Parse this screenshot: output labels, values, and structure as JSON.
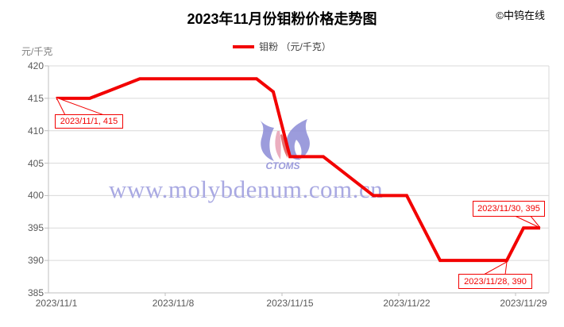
{
  "header": {
    "title": "2023年11月份钼粉价格走势图",
    "copyright": "©中钨在线"
  },
  "legend": {
    "label": "钼粉 （元/千克）"
  },
  "y_axis_unit": "元/千克",
  "watermark": {
    "url": "www.molybdenum.com.cn",
    "logo_text": "CTOMS"
  },
  "colors": {
    "line": "#f20000",
    "annotation": "#f20000",
    "gridline": "#d9d9d9",
    "axis": "#bfbfbf",
    "tick_text": "#595959",
    "watermark": "#a9a9e2",
    "logo_blue": "#8b8bd6",
    "logo_pink": "#e8a0b4",
    "logo_red": "#e05858"
  },
  "chart_data": {
    "type": "line",
    "title": "2023年11月份钼粉价格走势图",
    "series_name": "钼粉",
    "unit": "元/千克",
    "x": [
      "2023/11/1",
      "2023/11/2",
      "2023/11/3",
      "2023/11/4",
      "2023/11/5",
      "2023/11/6",
      "2023/11/7",
      "2023/11/8",
      "2023/11/9",
      "2023/11/10",
      "2023/11/11",
      "2023/11/12",
      "2023/11/13",
      "2023/11/14",
      "2023/11/15",
      "2023/11/16",
      "2023/11/17",
      "2023/11/18",
      "2023/11/19",
      "2023/11/20",
      "2023/11/21",
      "2023/11/22",
      "2023/11/23",
      "2023/11/24",
      "2023/11/25",
      "2023/11/26",
      "2023/11/27",
      "2023/11/28",
      "2023/11/29",
      "2023/11/30"
    ],
    "values": [
      415,
      415,
      415,
      416,
      417,
      418,
      418,
      418,
      418,
      418,
      418,
      418,
      418,
      416,
      406,
      406,
      406,
      404,
      402,
      400,
      400,
      400,
      395,
      390,
      390,
      390,
      390,
      390,
      395,
      395
    ],
    "ylim": [
      385,
      420
    ],
    "y_ticks": [
      385,
      390,
      395,
      400,
      405,
      410,
      415,
      420
    ],
    "x_ticks": [
      {
        "day": 1,
        "label": "2023/11/1"
      },
      {
        "day": 8,
        "label": "2023/11/8"
      },
      {
        "day": 15,
        "label": "2023/11/15"
      },
      {
        "day": 22,
        "label": "2023/11/22"
      },
      {
        "day": 29,
        "label": "2023/11/29"
      }
    ],
    "grid": "horizontal",
    "legend_position": "top",
    "annotations": [
      {
        "label": "2023/11/1, 415",
        "day": 1,
        "value": 415
      },
      {
        "label": "2023/11/30, 395",
        "day": 30,
        "value": 395
      },
      {
        "label": "2023/11/28, 390",
        "day": 28,
        "value": 390
      }
    ]
  }
}
